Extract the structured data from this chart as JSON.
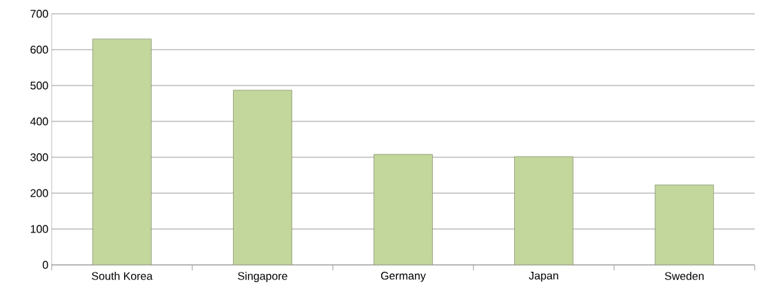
{
  "chart_data": {
    "type": "bar",
    "categories": [
      "South Korea",
      "Singapore",
      "Germany",
      "Japan",
      "Sweden"
    ],
    "values": [
      630,
      487,
      308,
      302,
      223
    ],
    "color": "#c3d69b",
    "ylim": [
      0,
      700
    ],
    "yticks": [
      0,
      100,
      200,
      300,
      400,
      500,
      600,
      700
    ],
    "grid": "y"
  }
}
